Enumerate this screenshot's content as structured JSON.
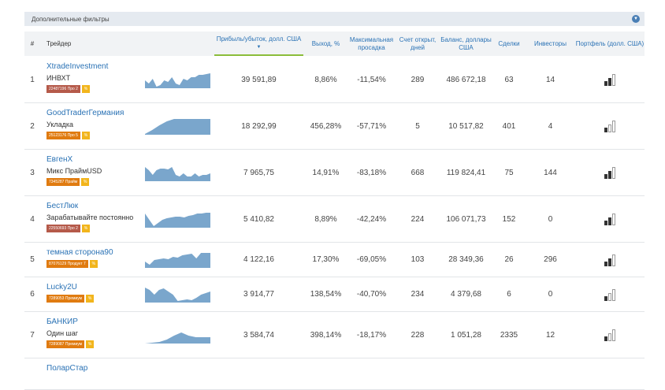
{
  "filters": {
    "label": "Дополнительные фильтры",
    "toggle_icon": "chevron-down-icon"
  },
  "columns": {
    "num": "#",
    "trader": "Трейдер",
    "profit": "Прибыль/убыток, долл. США",
    "profit_sort": "▼",
    "yield": "Выход, %",
    "drawdown": "Максимальная просадка",
    "days": "Счет открыт, дней",
    "balance": "Баланс, доллары США",
    "trades": "Сделки",
    "investors": "Инвесторы",
    "portfolio": "Портфель (долл. США)"
  },
  "colors": {
    "link": "#2a72b5",
    "accent": "#8bbd3a",
    "spark": "#7aa6cc",
    "badge_red": "#b55a4a",
    "badge_orange": "#e07b10",
    "pct": "#f2b51c"
  },
  "rows": [
    {
      "num": "1",
      "name": "XtradeInvestment",
      "sub": "ИНВХТ",
      "badge": "22487196 Про 2",
      "badge_color": "#b55a4a",
      "pct": "%",
      "profit": "39 591,89",
      "yield": "8,86%",
      "drawdown": "-11,54%",
      "days": "289",
      "balance": "486 672,18",
      "trades": "63",
      "investors": "14",
      "portfolio_level": 2,
      "spark": [
        0.5,
        0.3,
        0.6,
        0.1,
        0.2,
        0.5,
        0.4,
        0.7,
        0.3,
        0.2,
        0.6,
        0.5,
        0.7,
        0.7,
        0.85,
        0.85,
        0.9,
        0.95
      ]
    },
    {
      "num": "2",
      "name": "GoodTraderГермания",
      "sub": "Укладка",
      "badge": "25123176 Про 5",
      "badge_color": "#e07b10",
      "pct": "%",
      "profit": "18 292,99",
      "yield": "456,28%",
      "drawdown": "-57,71%",
      "days": "5",
      "balance": "10 517,82",
      "trades": "401",
      "investors": "4",
      "portfolio_level": 1,
      "spark": [
        0.05,
        0.3,
        0.6,
        0.85,
        1,
        1,
        1,
        1,
        1,
        1
      ]
    },
    {
      "num": "3",
      "name": "ЕвгенX",
      "sub": "Микс ПраймUSD",
      "badge": "7345287 Прайм",
      "badge_color": "#e07b10",
      "pct": "%",
      "profit": "7 965,75",
      "yield": "14,91%",
      "drawdown": "-83,18%",
      "days": "668",
      "balance": "119 824,41",
      "trades": "75",
      "investors": "144",
      "portfolio_level": 2,
      "spark": [
        0.9,
        0.7,
        0.4,
        0.7,
        0.8,
        0.8,
        0.75,
        0.9,
        0.4,
        0.3,
        0.5,
        0.3,
        0.3,
        0.5,
        0.3,
        0.4,
        0.4,
        0.5
      ]
    },
    {
      "num": "4",
      "name": "БестЛюк",
      "sub": "Зарабатывайте постоянно",
      "badge": "22550693 Про 2",
      "badge_color": "#b55a4a",
      "pct": "%",
      "profit": "5 410,82",
      "yield": "8,89%",
      "drawdown": "-42,24%",
      "days": "224",
      "balance": "106 071,73",
      "trades": "152",
      "investors": "0",
      "portfolio_level": 2,
      "spark": [
        0.9,
        0.5,
        0.1,
        0.3,
        0.5,
        0.6,
        0.65,
        0.7,
        0.7,
        0.65,
        0.75,
        0.8,
        0.9,
        0.9,
        0.95,
        0.95
      ]
    },
    {
      "num": "5",
      "name": "темная сторона90",
      "sub": "",
      "badge": "87076129 Продукт 7",
      "badge_color": "#e07b10",
      "pct": "%",
      "profit": "4 122,16",
      "yield": "17,30%",
      "drawdown": "-69,05%",
      "days": "103",
      "balance": "28 349,36",
      "trades": "26",
      "investors": "296",
      "portfolio_level": 2,
      "spark": [
        0.4,
        0.2,
        0.5,
        0.55,
        0.6,
        0.55,
        0.7,
        0.65,
        0.8,
        0.85,
        0.9,
        0.6,
        0.95,
        0.95,
        0.95
      ]
    },
    {
      "num": "6",
      "name": "Lucky2U",
      "sub": "",
      "badge": "7289053 Премиум",
      "badge_color": "#e07b10",
      "pct": "%",
      "profit": "3 914,77",
      "yield": "138,54%",
      "drawdown": "-40,70%",
      "days": "234",
      "balance": "4 379,68",
      "trades": "6",
      "investors": "0",
      "portfolio_level": 1,
      "spark": [
        0.95,
        0.8,
        0.5,
        0.8,
        0.9,
        0.7,
        0.5,
        0.1,
        0.15,
        0.2,
        0.15,
        0.3,
        0.5,
        0.6,
        0.7
      ]
    },
    {
      "num": "7",
      "name": "БАНКИР",
      "sub": "Один шаг",
      "badge": "7289087 Премиум",
      "badge_color": "#e07b10",
      "pct": "%",
      "profit": "3 584,74",
      "yield": "398,14%",
      "drawdown": "-18,17%",
      "days": "228",
      "balance": "1 051,28",
      "trades": "2335",
      "investors": "12",
      "portfolio_level": 1,
      "spark": [
        0.0,
        0.05,
        0.1,
        0.25,
        0.5,
        0.7,
        0.5,
        0.4,
        0.4,
        0.4
      ]
    },
    {
      "num": "",
      "name": "ПоларСтар",
      "sub": "",
      "badge": "",
      "badge_color": "#e07b10",
      "pct": "",
      "profit": "",
      "yield": "",
      "drawdown": "",
      "days": "",
      "balance": "",
      "trades": "",
      "investors": "",
      "portfolio_level": 0,
      "spark": []
    }
  ]
}
